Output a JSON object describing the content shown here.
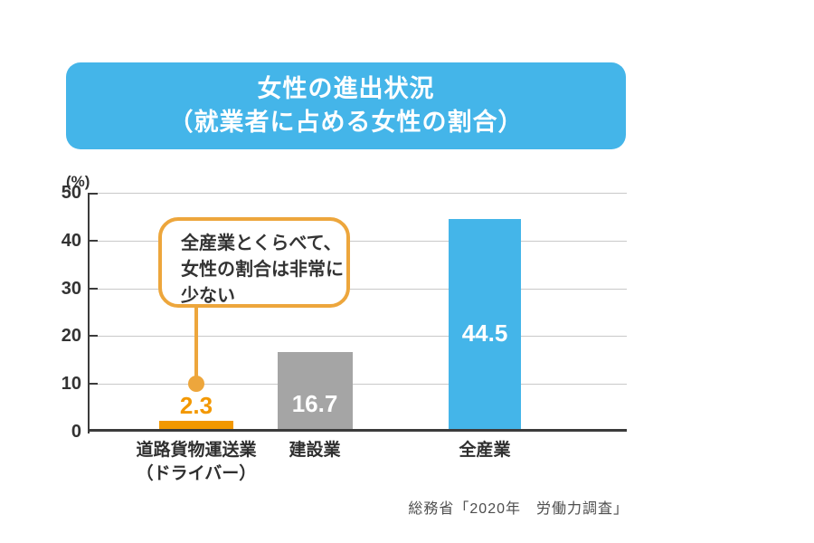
{
  "header": {
    "title_line1": "女性の進出状況",
    "title_line2": "（就業者に占める女性の割合）",
    "bg_color": "#44B5E9",
    "text_color": "#FFFFFF"
  },
  "chart_data": {
    "type": "bar",
    "title": "女性の進出状況（就業者に占める女性の割合）",
    "unit_label": "(%)",
    "categories": [
      "道路貨物運送業（ドライバー）",
      "建設業",
      "全産業"
    ],
    "category_lines": [
      [
        "道路貨物運送業",
        "（ドライバー）"
      ],
      [
        "建設業"
      ],
      [
        "全産業"
      ]
    ],
    "values": [
      2.3,
      16.7,
      44.5
    ],
    "value_labels": [
      "2.3",
      "16.7",
      "44.5"
    ],
    "bar_colors": [
      "#F39800",
      "#A5A5A5",
      "#44B5E9"
    ],
    "value_label_colors": [
      "#F39800",
      "#FFFFFF",
      "#FFFFFF"
    ],
    "ylabel": "",
    "xlabel": "",
    "ylim": [
      0,
      50
    ],
    "yticks": [
      0,
      10,
      20,
      30,
      40,
      50
    ],
    "grid": true,
    "gridline_color": "#C9C9C9",
    "axis_color": "#3B3B3B",
    "legend": "none"
  },
  "annotation": {
    "text_lines": [
      "全産業とくらべて、",
      "女性の割合は非常に",
      "少ない"
    ],
    "accent_color": "#EDA63C",
    "pointer_value": 10.5
  },
  "source": {
    "text": "総務省「2020年　労働力調査」"
  }
}
